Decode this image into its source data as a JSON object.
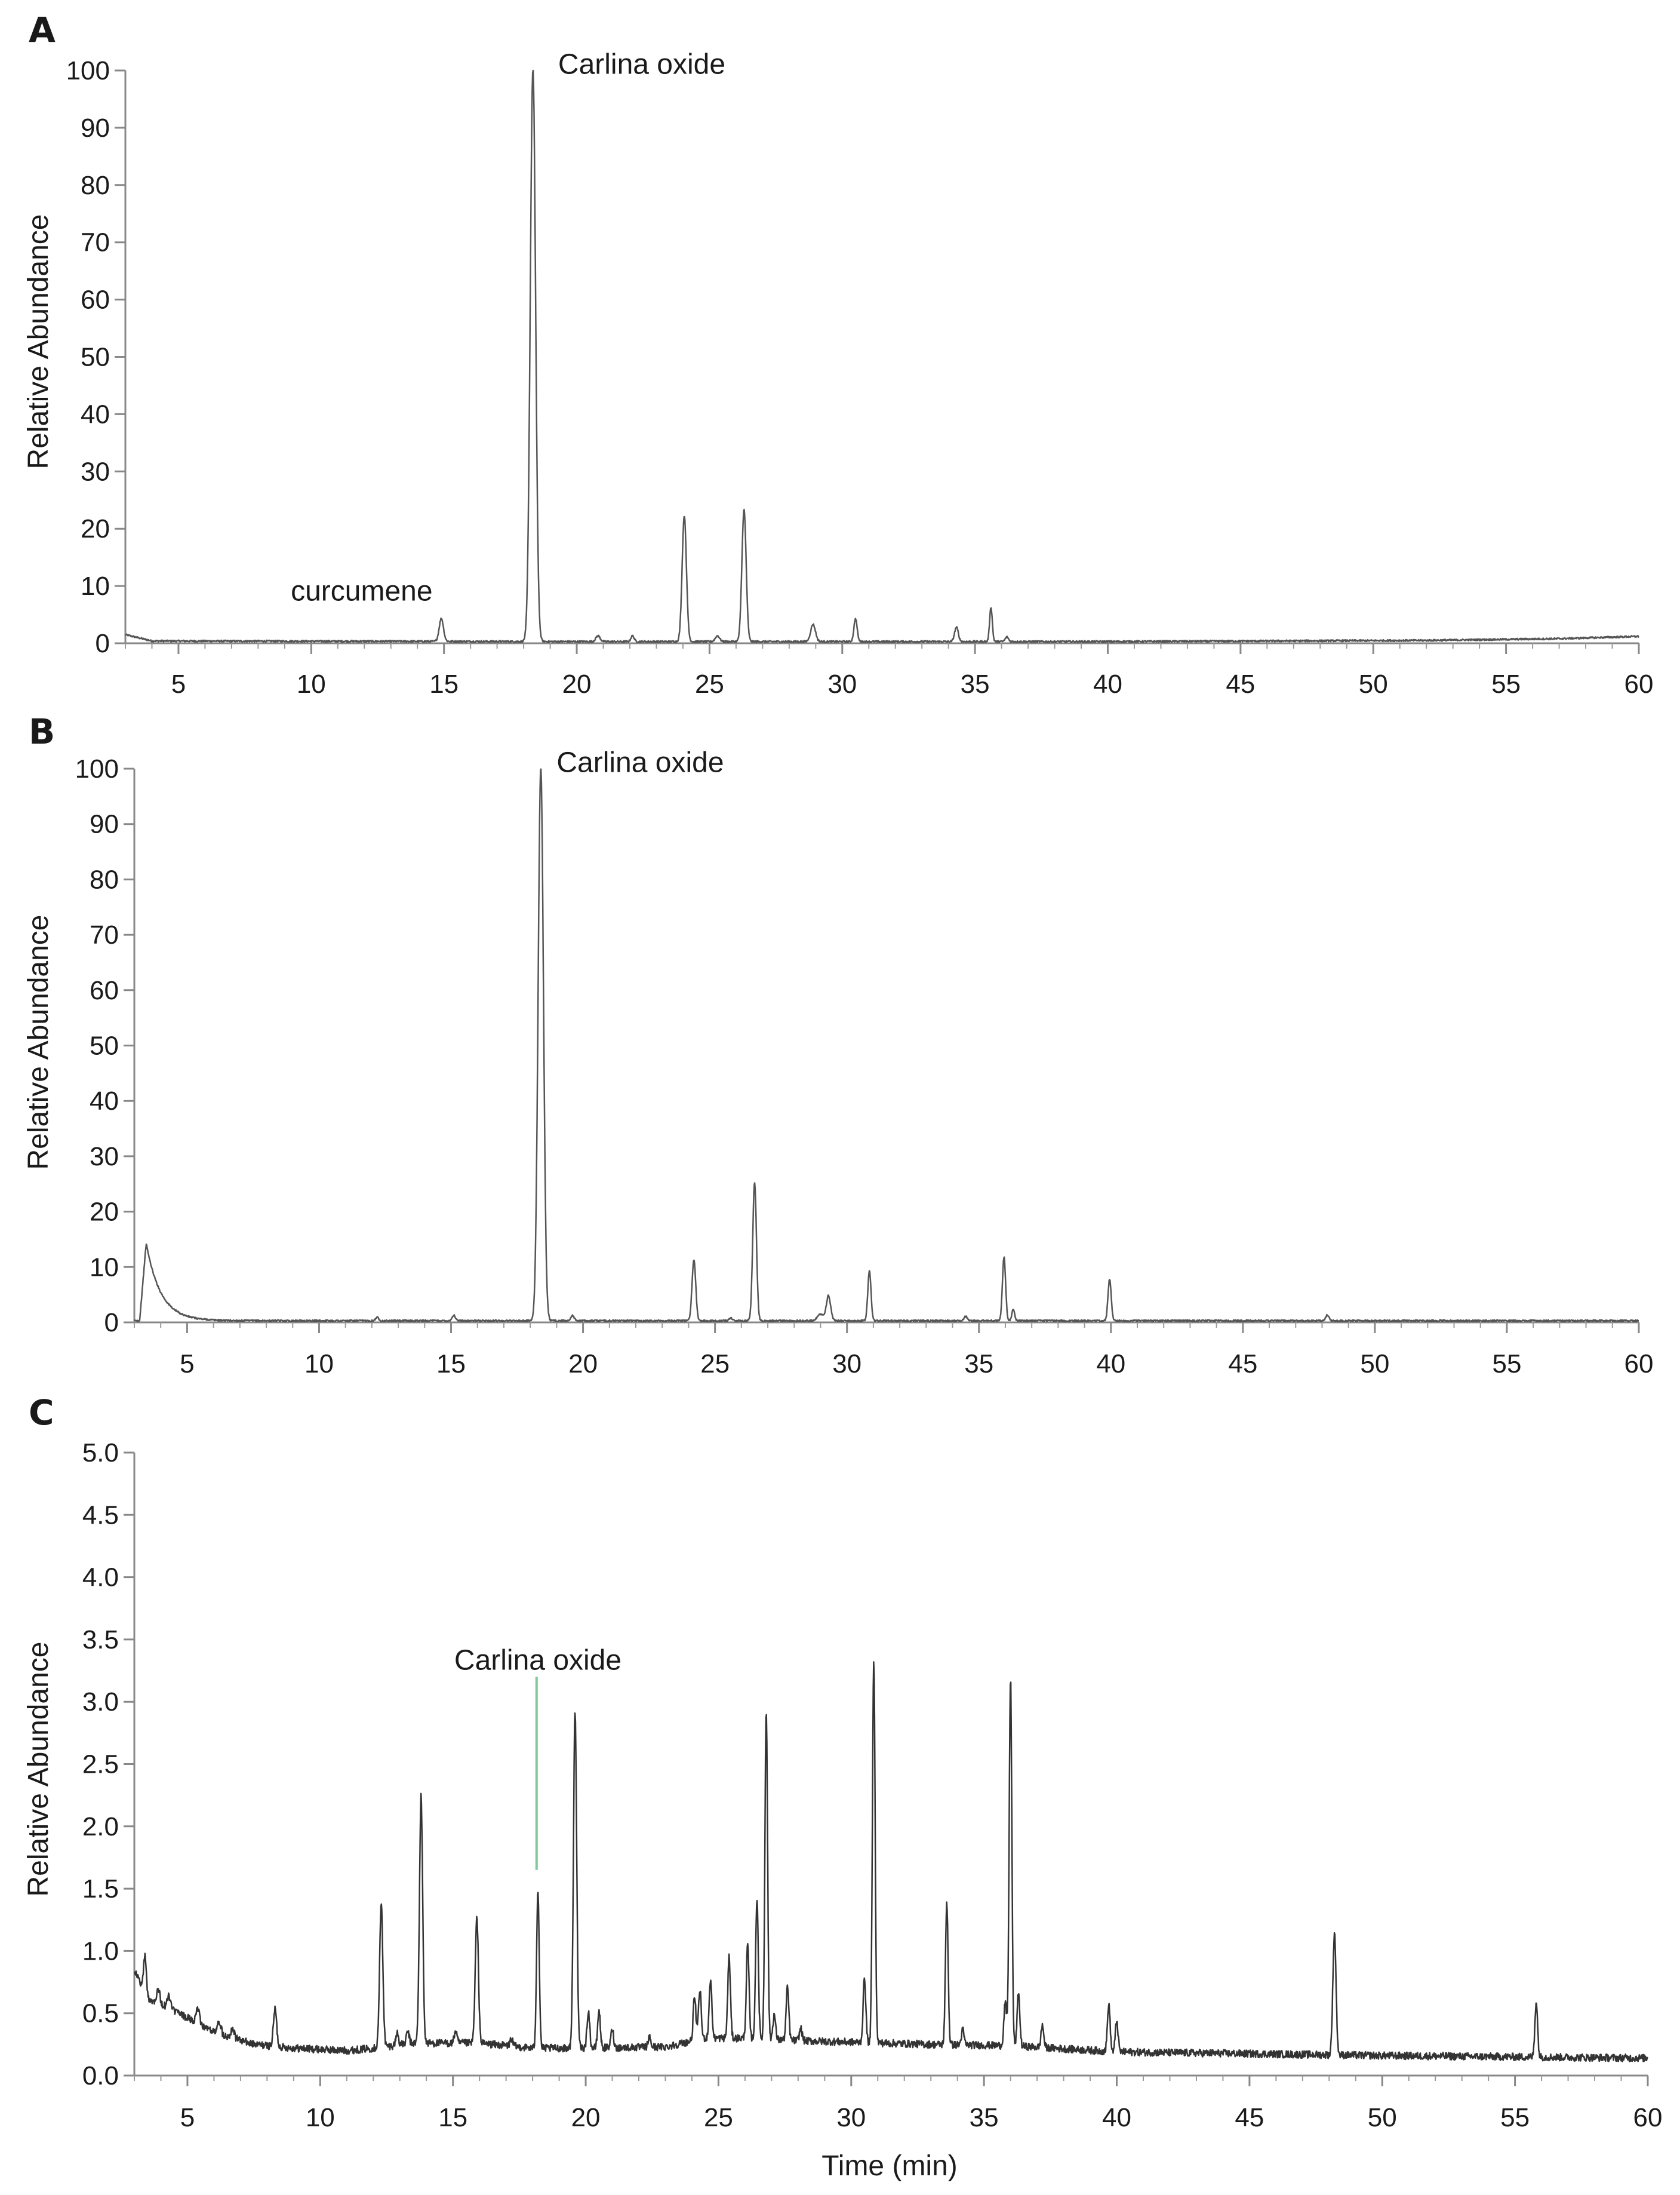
{
  "chart_data": [
    {
      "type": "line",
      "panel": "A",
      "ylabel": "Relative Abundance",
      "xlabel": "",
      "xlim": [
        3,
        60
      ],
      "ylim": [
        0,
        100
      ],
      "xticks": [
        5,
        10,
        15,
        20,
        25,
        30,
        35,
        40,
        45,
        50,
        55,
        60
      ],
      "yticks": [
        0,
        10,
        20,
        30,
        40,
        50,
        60,
        70,
        80,
        90,
        100
      ],
      "baseline": [
        [
          3.0,
          1.5
        ],
        [
          4.0,
          0.4
        ],
        [
          20,
          0.3
        ],
        [
          40,
          0.3
        ],
        [
          52,
          0.5
        ],
        [
          57,
          0.8
        ],
        [
          60,
          1.2
        ]
      ],
      "peaks": [
        {
          "t": 14.9,
          "h": 4,
          "w": 0.08
        },
        {
          "t": 18.35,
          "h": 100,
          "w": 0.1
        },
        {
          "t": 20.8,
          "h": 1,
          "w": 0.08
        },
        {
          "t": 22.1,
          "h": 1,
          "w": 0.06
        },
        {
          "t": 24.05,
          "h": 22,
          "w": 0.08
        },
        {
          "t": 25.3,
          "h": 1,
          "w": 0.08
        },
        {
          "t": 26.3,
          "h": 23,
          "w": 0.08
        },
        {
          "t": 28.9,
          "h": 3,
          "w": 0.09
        },
        {
          "t": 30.5,
          "h": 4,
          "w": 0.06
        },
        {
          "t": 34.3,
          "h": 2.5,
          "w": 0.07
        },
        {
          "t": 35.6,
          "h": 6,
          "w": 0.05
        },
        {
          "t": 36.2,
          "h": 0.8,
          "w": 0.06
        }
      ],
      "annotations": [
        {
          "text": "Carlina oxide",
          "t": 19.3,
          "y": 101
        },
        {
          "text": "curcumene",
          "t": 11.9,
          "y": 9
        }
      ]
    },
    {
      "type": "line",
      "panel": "B",
      "ylabel": "Relative Abundance",
      "xlabel": "",
      "xlim": [
        3,
        60
      ],
      "ylim": [
        0,
        100
      ],
      "xticks": [
        5,
        10,
        15,
        20,
        25,
        30,
        35,
        40,
        45,
        50,
        55,
        60
      ],
      "yticks": [
        0,
        10,
        20,
        30,
        40,
        50,
        60,
        70,
        80,
        90,
        100
      ],
      "baseline": [
        [
          3.0,
          0.3
        ],
        [
          3.2,
          0.3
        ],
        [
          5.0,
          0.3
        ],
        [
          60,
          0.3
        ]
      ],
      "front": {
        "t0": 3.2,
        "rise_end": 3.45,
        "h": 14,
        "tau": 0.55
      },
      "peaks": [
        {
          "t": 12.2,
          "h": 0.6,
          "w": 0.06
        },
        {
          "t": 15.1,
          "h": 1,
          "w": 0.06
        },
        {
          "t": 18.4,
          "h": 100,
          "w": 0.1
        },
        {
          "t": 19.6,
          "h": 1,
          "w": 0.06
        },
        {
          "t": 24.2,
          "h": 11,
          "w": 0.07
        },
        {
          "t": 25.6,
          "h": 0.5,
          "w": 0.06
        },
        {
          "t": 26.5,
          "h": 25,
          "w": 0.07
        },
        {
          "t": 29.0,
          "h": 1.2,
          "w": 0.12
        },
        {
          "t": 29.3,
          "h": 4.5,
          "w": 0.08
        },
        {
          "t": 30.85,
          "h": 9,
          "w": 0.06
        },
        {
          "t": 34.5,
          "h": 0.8,
          "w": 0.06
        },
        {
          "t": 35.95,
          "h": 11.5,
          "w": 0.06
        },
        {
          "t": 36.3,
          "h": 2,
          "w": 0.05
        },
        {
          "t": 39.95,
          "h": 7.5,
          "w": 0.06
        },
        {
          "t": 48.2,
          "h": 1,
          "w": 0.06
        }
      ],
      "annotations": [
        {
          "text": "Carlina oxide",
          "t": 19.0,
          "y": 101
        }
      ]
    },
    {
      "type": "line",
      "panel": "C",
      "ylabel": "Relative Abundance",
      "xlabel": "Time (min)",
      "xlim": [
        3,
        60
      ],
      "ylim": [
        0,
        5
      ],
      "xticks": [
        5,
        10,
        15,
        20,
        25,
        30,
        35,
        40,
        45,
        50,
        55,
        60
      ],
      "yticks": [
        0.0,
        0.5,
        1.0,
        1.5,
        2.0,
        2.5,
        3.0,
        3.5,
        4.0,
        4.5,
        5.0
      ],
      "baseline": [
        [
          3.0,
          0.85
        ],
        [
          3.5,
          0.62
        ],
        [
          4.5,
          0.52
        ],
        [
          6.0,
          0.35
        ],
        [
          7.5,
          0.25
        ],
        [
          9.0,
          0.22
        ],
        [
          11.0,
          0.2
        ],
        [
          12.0,
          0.22
        ],
        [
          13.5,
          0.26
        ],
        [
          16.0,
          0.26
        ],
        [
          18.0,
          0.22
        ],
        [
          20.0,
          0.22
        ],
        [
          23.0,
          0.23
        ],
        [
          24.5,
          0.3
        ],
        [
          26.0,
          0.3
        ],
        [
          28.0,
          0.28
        ],
        [
          33.0,
          0.25
        ],
        [
          36.0,
          0.24
        ],
        [
          40.0,
          0.19
        ],
        [
          50.0,
          0.16
        ],
        [
          60.0,
          0.14
        ]
      ],
      "peaks": [
        {
          "t": 3.4,
          "h": 0.3,
          "w": 0.05
        },
        {
          "t": 3.9,
          "h": 0.12,
          "w": 0.06
        },
        {
          "t": 4.3,
          "h": 0.1,
          "w": 0.06
        },
        {
          "t": 5.4,
          "h": 0.12,
          "w": 0.06
        },
        {
          "t": 6.2,
          "h": 0.1,
          "w": 0.06
        },
        {
          "t": 6.7,
          "h": 0.08,
          "w": 0.06
        },
        {
          "t": 8.3,
          "h": 0.3,
          "w": 0.06
        },
        {
          "t": 12.3,
          "h": 1.15,
          "w": 0.06
        },
        {
          "t": 12.9,
          "h": 0.1,
          "w": 0.05
        },
        {
          "t": 13.3,
          "h": 0.1,
          "w": 0.05
        },
        {
          "t": 13.8,
          "h": 1.98,
          "w": 0.06
        },
        {
          "t": 15.1,
          "h": 0.1,
          "w": 0.05
        },
        {
          "t": 15.9,
          "h": 1.0,
          "w": 0.06
        },
        {
          "t": 17.2,
          "h": 0.06,
          "w": 0.05
        },
        {
          "t": 18.2,
          "h": 1.27,
          "w": 0.05
        },
        {
          "t": 19.6,
          "h": 2.72,
          "w": 0.06
        },
        {
          "t": 20.1,
          "h": 0.3,
          "w": 0.05
        },
        {
          "t": 20.5,
          "h": 0.3,
          "w": 0.05
        },
        {
          "t": 21.0,
          "h": 0.15,
          "w": 0.05
        },
        {
          "t": 22.4,
          "h": 0.08,
          "w": 0.05
        },
        {
          "t": 24.1,
          "h": 0.35,
          "w": 0.05
        },
        {
          "t": 24.3,
          "h": 0.4,
          "w": 0.05
        },
        {
          "t": 24.7,
          "h": 0.47,
          "w": 0.05
        },
        {
          "t": 25.4,
          "h": 0.65,
          "w": 0.05
        },
        {
          "t": 26.1,
          "h": 0.75,
          "w": 0.05
        },
        {
          "t": 26.45,
          "h": 1.13,
          "w": 0.05
        },
        {
          "t": 26.8,
          "h": 2.65,
          "w": 0.05
        },
        {
          "t": 27.1,
          "h": 0.2,
          "w": 0.05
        },
        {
          "t": 27.6,
          "h": 0.42,
          "w": 0.05
        },
        {
          "t": 28.1,
          "h": 0.1,
          "w": 0.05
        },
        {
          "t": 30.5,
          "h": 0.52,
          "w": 0.05
        },
        {
          "t": 30.85,
          "h": 3.08,
          "w": 0.05
        },
        {
          "t": 33.6,
          "h": 1.14,
          "w": 0.05
        },
        {
          "t": 34.2,
          "h": 0.12,
          "w": 0.05
        },
        {
          "t": 35.8,
          "h": 0.35,
          "w": 0.05
        },
        {
          "t": 36.0,
          "h": 2.95,
          "w": 0.05
        },
        {
          "t": 36.3,
          "h": 0.42,
          "w": 0.05
        },
        {
          "t": 37.2,
          "h": 0.18,
          "w": 0.05
        },
        {
          "t": 39.7,
          "h": 0.38,
          "w": 0.05
        },
        {
          "t": 40.0,
          "h": 0.25,
          "w": 0.05
        },
        {
          "t": 48.2,
          "h": 0.98,
          "w": 0.06
        },
        {
          "t": 55.8,
          "h": 0.45,
          "w": 0.05
        }
      ],
      "marker": {
        "t": 18.15,
        "y_from": 1.65,
        "y_to": 3.2,
        "color": "#7fc99a"
      },
      "annotations": [
        {
          "text": "Carlina oxide",
          "t": 18.2,
          "y": 3.33
        }
      ]
    }
  ]
}
